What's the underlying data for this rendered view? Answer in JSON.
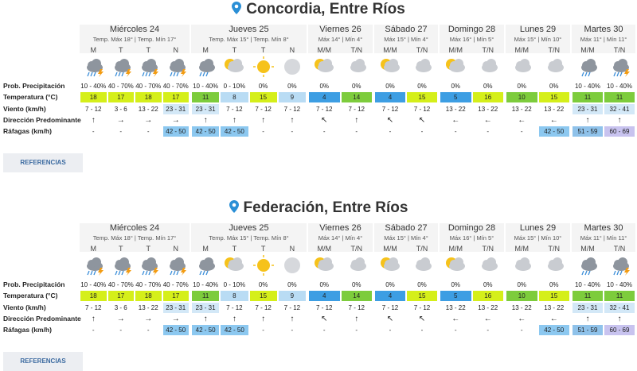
{
  "locations": [
    {
      "title": "Concordia, Entre Ríos",
      "days": [
        {
          "name": "Miércoles 24",
          "temps": "Temp. Máx 18° | Temp. Mín 17°",
          "periods": [
            "M",
            "T",
            "T",
            "N"
          ]
        },
        {
          "name": "Jueves 25",
          "temps": "Temp. Máx 15° | Temp. Mín 8°",
          "periods": [
            "M",
            "T",
            "T",
            "N"
          ]
        },
        {
          "name": "Viernes 26",
          "temps": "Máx 14° | Mín 4°",
          "periods": [
            "M/M",
            "T/N"
          ]
        },
        {
          "name": "Sábado 27",
          "temps": "Máx 15° | Mín 4°",
          "periods": [
            "M/M",
            "T/N"
          ]
        },
        {
          "name": "Domingo 28",
          "temps": "Máx 16° | Mín 5°",
          "periods": [
            "M/M",
            "T/N"
          ]
        },
        {
          "name": "Lunes 29",
          "temps": "Máx 15° | Mín 10°",
          "periods": [
            "M/M",
            "T/N"
          ]
        },
        {
          "name": "Martes 30",
          "temps": "Máx 11° | Mín 11°",
          "periods": [
            "M/M",
            "T/N"
          ]
        }
      ],
      "rows": [
        {
          "label": "Prob. Precipitación",
          "values": [
            "10 - 40%",
            "40 - 70%",
            "40 - 70%",
            "40 - 70%",
            "10 - 40%",
            "0 - 10%",
            "0%",
            "0%",
            "0%",
            "0%",
            "0%",
            "0%",
            "0%",
            "0%",
            "0%",
            "0%",
            "10 - 40%",
            "10 - 40%"
          ]
        },
        {
          "label": "Temperatura (°C)",
          "values": [
            18,
            17,
            18,
            17,
            11,
            8,
            15,
            9,
            4,
            14,
            4,
            15,
            5,
            16,
            10,
            15,
            11,
            11
          ]
        },
        {
          "label": "Viento (km/h)",
          "values": [
            "7 - 12",
            "3 - 6",
            "13 - 22",
            "23 - 31",
            "23 - 31",
            "7 - 12",
            "7 - 12",
            "7 - 12",
            "7 - 12",
            "7 - 12",
            "7 - 12",
            "7 - 12",
            "13 - 22",
            "13 - 22",
            "13 - 22",
            "13 - 22",
            "23 - 31",
            "32 - 41"
          ]
        },
        {
          "label": "Dirección Predominante",
          "values": [
            "↑",
            "→",
            "→",
            "→",
            "↑",
            "↑",
            "↑",
            "↑",
            "↖",
            "↑",
            "↖",
            "↖",
            "←",
            "←",
            "←",
            "←",
            "↑",
            "↑"
          ]
        },
        {
          "label": "Ráfagas (km/h)",
          "values": [
            "-",
            "-",
            "-",
            "42 - 50",
            "42 - 50",
            "42 - 50",
            "-",
            "-",
            "-",
            "-",
            "-",
            "-",
            "-",
            "-",
            "-",
            "42 - 50",
            "51 - 59",
            "60 - 69"
          ]
        }
      ],
      "button": "REFERENCIAS"
    },
    {
      "title": "Federación, Entre Ríos",
      "days": [
        {
          "name": "Miércoles 24",
          "temps": "Temp. Máx 18° | Temp. Mín 17°",
          "periods": [
            "M",
            "T",
            "T",
            "N"
          ]
        },
        {
          "name": "Jueves 25",
          "temps": "Temp. Máx 15° | Temp. Mín 8°",
          "periods": [
            "M",
            "T",
            "T",
            "N"
          ]
        },
        {
          "name": "Viernes 26",
          "temps": "Máx 14° | Mín 4°",
          "periods": [
            "M/M",
            "T/N"
          ]
        },
        {
          "name": "Sábado 27",
          "temps": "Máx 15° | Mín 4°",
          "periods": [
            "M/M",
            "T/N"
          ]
        },
        {
          "name": "Domingo 28",
          "temps": "Máx 16° | Mín 5°",
          "periods": [
            "M/M",
            "T/N"
          ]
        },
        {
          "name": "Lunes 29",
          "temps": "Máx 15° | Mín 10°",
          "periods": [
            "M/M",
            "T/N"
          ]
        },
        {
          "name": "Martes 30",
          "temps": "Máx 11° | Mín 11°",
          "periods": [
            "M/M",
            "T/N"
          ]
        }
      ],
      "rows": [
        {
          "label": "Prob. Precipitación",
          "values": [
            "10 - 40%",
            "40 - 70%",
            "40 - 70%",
            "40 - 70%",
            "10 - 40%",
            "0 - 10%",
            "0%",
            "0%",
            "0%",
            "0%",
            "0%",
            "0%",
            "0%",
            "0%",
            "0%",
            "0%",
            "10 - 40%",
            "10 - 40%"
          ]
        },
        {
          "label": "Temperatura (°C)",
          "values": [
            18,
            17,
            18,
            17,
            11,
            8,
            15,
            9,
            4,
            14,
            4,
            15,
            5,
            16,
            10,
            15,
            11,
            11
          ]
        },
        {
          "label": "Viento (km/h)",
          "values": [
            "7 - 12",
            "3 - 6",
            "13 - 22",
            "23 - 31",
            "23 - 31",
            "7 - 12",
            "7 - 12",
            "7 - 12",
            "7 - 12",
            "7 - 12",
            "7 - 12",
            "7 - 12",
            "13 - 22",
            "13 - 22",
            "13 - 22",
            "13 - 22",
            "23 - 31",
            "32 - 41"
          ]
        },
        {
          "label": "Dirección Predominante",
          "values": [
            "↑",
            "→",
            "→",
            "→",
            "↑",
            "↑",
            "↑",
            "↑",
            "↖",
            "↑",
            "↖",
            "↖",
            "←",
            "←",
            "←",
            "←",
            "↑",
            "↑"
          ]
        },
        {
          "label": "Ráfagas (km/h)",
          "values": [
            "-",
            "-",
            "-",
            "42 - 50",
            "42 - 50",
            "42 - 50",
            "-",
            "-",
            "-",
            "-",
            "-",
            "-",
            "-",
            "-",
            "-",
            "42 - 50",
            "51 - 59",
            "60 - 69"
          ]
        }
      ],
      "button": "REFERENCIAS"
    }
  ]
}
